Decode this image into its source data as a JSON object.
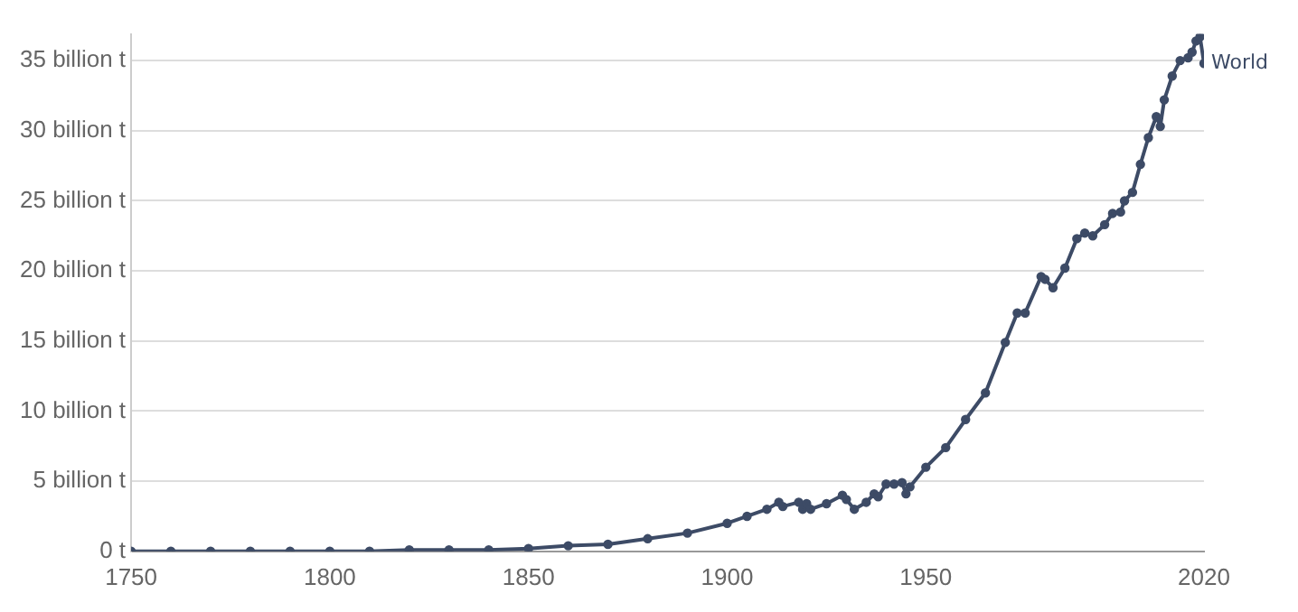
{
  "chart_data": {
    "type": "line",
    "x": [
      1750,
      1760,
      1770,
      1780,
      1790,
      1800,
      1810,
      1820,
      1830,
      1840,
      1850,
      1860,
      1870,
      1880,
      1890,
      1900,
      1905,
      1910,
      1913,
      1914,
      1918,
      1919,
      1920,
      1921,
      1925,
      1929,
      1930,
      1932,
      1935,
      1937,
      1938,
      1940,
      1942,
      1944,
      1945,
      1946,
      1950,
      1955,
      1960,
      1965,
      1970,
      1973,
      1975,
      1979,
      1980,
      1982,
      1985,
      1988,
      1990,
      1992,
      1995,
      1997,
      1999,
      2000,
      2002,
      2004,
      2006,
      2008,
      2009,
      2010,
      2012,
      2014,
      2016,
      2017,
      2018,
      2019,
      2020
    ],
    "series": [
      {
        "name": "World",
        "color": "#3d4b66",
        "values": [
          0,
          0,
          0,
          0,
          0,
          0,
          0,
          0.1,
          0.1,
          0.1,
          0.2,
          0.4,
          0.5,
          0.9,
          1.3,
          2.0,
          2.5,
          3.0,
          3.5,
          3.2,
          3.5,
          3.0,
          3.4,
          3.0,
          3.4,
          4.0,
          3.7,
          3.0,
          3.5,
          4.1,
          3.9,
          4.8,
          4.8,
          4.9,
          4.1,
          4.6,
          6.0,
          7.4,
          9.4,
          11.3,
          14.9,
          17.0,
          17.0,
          19.6,
          19.4,
          18.8,
          20.2,
          22.3,
          22.7,
          22.5,
          23.3,
          24.1,
          24.2,
          25.0,
          25.6,
          27.6,
          29.5,
          31.0,
          30.3,
          32.2,
          33.9,
          35.0,
          35.2,
          35.6,
          36.4,
          36.7,
          34.8
        ]
      }
    ],
    "xlim": [
      1750,
      2020
    ],
    "xticks": [
      1750,
      1800,
      1850,
      1900,
      1950,
      2020
    ],
    "ylim": [
      0,
      36.9
    ],
    "yticks": [
      {
        "value": 0,
        "label": "0 t"
      },
      {
        "value": 5,
        "label": "5 billion t"
      },
      {
        "value": 10,
        "label": "10 billion t"
      },
      {
        "value": 15,
        "label": "15 billion t"
      },
      {
        "value": 20,
        "label": "20 billion t"
      },
      {
        "value": 25,
        "label": "25 billion t"
      },
      {
        "value": 30,
        "label": "30 billion t"
      },
      {
        "value": 35,
        "label": "35 billion t"
      }
    ],
    "grid": "y",
    "marker": "circle",
    "line_style": "solid"
  }
}
